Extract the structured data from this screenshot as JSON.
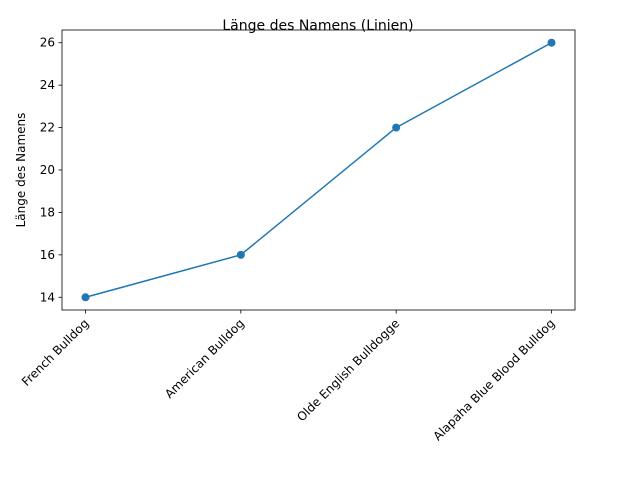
{
  "chart_data": {
    "type": "line",
    "title": "Länge des Namens (Linien)",
    "xlabel": "",
    "ylabel": "Länge des Namens",
    "categories": [
      "French Bulldog",
      "American Bulldog",
      "Olde English Bulldogge",
      "Alapaha Blue Blood Bulldog"
    ],
    "series": [
      {
        "values": [
          14,
          16,
          22,
          26
        ]
      }
    ],
    "ylim": [
      13.4,
      26.6
    ],
    "yticks": [
      14,
      16,
      18,
      20,
      22,
      24,
      26
    ],
    "grid": false,
    "line_color": "#1f77b4",
    "marker": "circle"
  }
}
